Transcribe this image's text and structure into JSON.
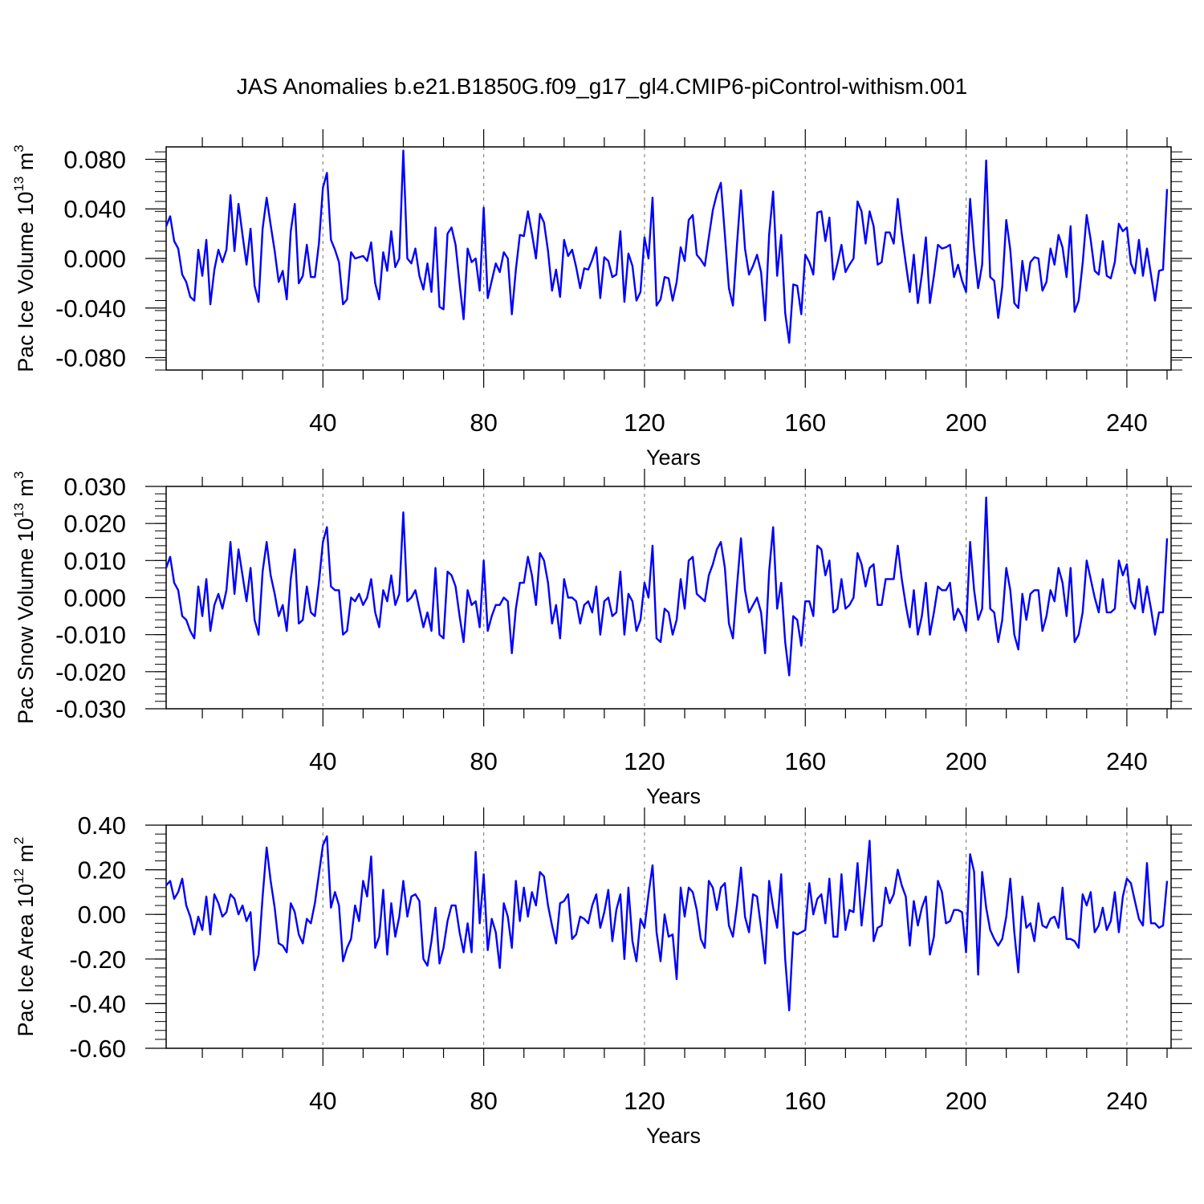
{
  "title": "JAS Anomalies b.e21.B1850G.f09_g17_gl4.CMIP6-piControl-withism.001",
  "chart_data": [
    {
      "type": "line",
      "title": "JAS Anomalies b.e21.B1850G.f09_g17_gl4.CMIP6-piControl-withism.001",
      "xlabel": "Years",
      "ylabel": {
        "prefix": "Pac Ice Volume 10",
        "exponent": "13",
        "unit": " m",
        "unit_exponent": "3"
      },
      "xlim": [
        1,
        251
      ],
      "ylim": [
        -0.09,
        0.09
      ],
      "xticks": [
        40,
        80,
        120,
        160,
        200,
        240
      ],
      "xtick_labels": [
        "40",
        "80",
        "120",
        "160",
        "200",
        "240"
      ],
      "yticks": [
        -0.08,
        -0.04,
        0.0,
        0.04,
        0.08
      ],
      "ytick_labels": [
        "-0.080",
        "-0.040",
        "0.000",
        "0.040",
        "0.080"
      ],
      "grid": "dashed vertical at x ticks",
      "color": "#0000ff",
      "series": [
        {
          "name": "Pac Ice Volume",
          "x_start": 1,
          "x_step": 1,
          "values": [
            0.026,
            0.034,
            0.014,
            0.008,
            -0.013,
            -0.019,
            -0.031,
            -0.034,
            0.007,
            -0.014,
            0.015,
            -0.037,
            -0.009,
            0.007,
            -0.003,
            0.007,
            0.051,
            0.006,
            0.044,
            0.019,
            -0.005,
            0.024,
            -0.022,
            -0.035,
            0.024,
            0.049,
            0.027,
            0.006,
            -0.019,
            -0.01,
            -0.033,
            0.022,
            0.044,
            -0.02,
            -0.014,
            0.011,
            -0.015,
            -0.015,
            0.012,
            0.057,
            0.069,
            0.015,
            0.007,
            -0.003,
            -0.037,
            -0.033,
            0.005,
            0.0,
            0.001,
            0.002,
            -0.002,
            0.013,
            -0.02,
            -0.033,
            0.005,
            -0.01,
            0.022,
            -0.007,
            0.0,
            0.087,
            0.0,
            -0.004,
            0.008,
            -0.014,
            -0.025,
            -0.004,
            -0.027,
            0.025,
            -0.039,
            -0.041,
            0.02,
            0.025,
            0.011,
            -0.02,
            -0.049,
            0.008,
            -0.003,
            0.0,
            -0.026,
            0.041,
            -0.032,
            -0.018,
            -0.004,
            -0.011,
            0.005,
            0.0,
            -0.045,
            -0.009,
            0.019,
            0.018,
            0.038,
            0.02,
            0.0,
            0.036,
            0.029,
            0.006,
            -0.026,
            -0.009,
            -0.031,
            0.015,
            0.002,
            0.007,
            -0.007,
            -0.024,
            -0.008,
            -0.009,
            -0.001,
            0.009,
            -0.032,
            0.001,
            -0.002,
            -0.015,
            -0.013,
            0.022,
            -0.035,
            0.004,
            -0.006,
            -0.034,
            -0.027,
            0.017,
            0.0,
            0.049,
            -0.038,
            -0.033,
            -0.015,
            -0.016,
            -0.034,
            -0.019,
            0.009,
            -0.002,
            0.031,
            0.035,
            0.003,
            -0.001,
            -0.006,
            0.017,
            0.039,
            0.052,
            0.061,
            0.019,
            -0.024,
            -0.038,
            0.011,
            0.055,
            0.008,
            -0.013,
            -0.006,
            0.003,
            -0.011,
            -0.05,
            0.019,
            0.054,
            -0.014,
            0.019,
            -0.044,
            -0.068,
            -0.021,
            -0.022,
            -0.045,
            0.003,
            -0.003,
            -0.013,
            0.037,
            0.038,
            0.014,
            0.033,
            -0.017,
            -0.004,
            0.011,
            -0.011,
            -0.005,
            0.0,
            0.046,
            0.038,
            0.012,
            0.038,
            0.026,
            -0.005,
            -0.003,
            0.021,
            0.021,
            0.012,
            0.048,
            0.02,
            -0.004,
            -0.027,
            0.003,
            -0.036,
            -0.013,
            0.017,
            -0.036,
            -0.014,
            0.011,
            0.008,
            0.009,
            0.011,
            -0.015,
            -0.005,
            -0.018,
            -0.027,
            0.048,
            0.007,
            -0.024,
            -0.005,
            0.079,
            -0.015,
            -0.018,
            -0.048,
            -0.023,
            0.031,
            0.007,
            -0.036,
            -0.04,
            -0.002,
            -0.026,
            -0.003,
            0.001,
            0.0,
            -0.026,
            -0.019,
            0.008,
            -0.005,
            0.019,
            0.009,
            -0.015,
            0.026,
            -0.043,
            -0.034,
            -0.004,
            0.035,
            0.015,
            -0.01,
            -0.013,
            0.014,
            -0.014,
            -0.016,
            -0.003,
            0.028,
            0.022,
            0.025,
            -0.004,
            -0.012,
            0.015,
            -0.014,
            0.008,
            -0.013,
            -0.034,
            -0.01,
            -0.009,
            0.056
          ]
        }
      ]
    },
    {
      "type": "line",
      "xlabel": "Years",
      "ylabel": {
        "prefix": "Pac Snow Volume 10",
        "exponent": "13",
        "unit": " m",
        "unit_exponent": "3"
      },
      "xlim": [
        1,
        251
      ],
      "ylim": [
        -0.03,
        0.03
      ],
      "xticks": [
        40,
        80,
        120,
        160,
        200,
        240
      ],
      "xtick_labels": [
        "40",
        "80",
        "120",
        "160",
        "200",
        "240"
      ],
      "yticks": [
        -0.03,
        -0.02,
        -0.01,
        0.0,
        0.01,
        0.02,
        0.03
      ],
      "ytick_labels": [
        "-0.030",
        "-0.020",
        "-0.010",
        "0.000",
        "0.010",
        "0.020",
        "0.030"
      ],
      "grid": "dashed vertical at x ticks",
      "color": "#0000ff",
      "series": [
        {
          "name": "Pac Snow Volume",
          "x_start": 1,
          "x_step": 1,
          "values": [
            0.008,
            0.011,
            0.004,
            0.002,
            -0.005,
            -0.006,
            -0.009,
            -0.011,
            0.003,
            -0.005,
            0.005,
            -0.009,
            -0.002,
            0.001,
            -0.003,
            0.002,
            0.015,
            0.001,
            0.013,
            0.006,
            -0.001,
            0.008,
            -0.006,
            -0.01,
            0.007,
            0.015,
            0.006,
            0.001,
            -0.005,
            -0.002,
            -0.009,
            0.005,
            0.013,
            -0.007,
            -0.006,
            0.003,
            -0.004,
            -0.005,
            0.004,
            0.015,
            0.019,
            0.003,
            0.002,
            0.002,
            -0.01,
            -0.009,
            0.0,
            -0.001,
            0.001,
            -0.002,
            0.0,
            0.005,
            -0.004,
            -0.008,
            0.002,
            -0.001,
            0.006,
            -0.002,
            0.001,
            0.023,
            -0.001,
            0.0,
            0.002,
            -0.003,
            -0.008,
            -0.004,
            -0.009,
            0.008,
            -0.01,
            -0.011,
            0.007,
            0.006,
            0.003,
            -0.005,
            -0.012,
            0.002,
            -0.002,
            -0.001,
            -0.008,
            0.01,
            -0.009,
            -0.005,
            -0.002,
            -0.002,
            0.0,
            -0.001,
            -0.015,
            -0.003,
            0.004,
            0.004,
            0.011,
            0.006,
            -0.002,
            0.012,
            0.01,
            0.004,
            -0.007,
            -0.002,
            -0.011,
            0.005,
            0.0,
            0.0,
            -0.001,
            -0.007,
            -0.002,
            -0.001,
            -0.004,
            0.003,
            -0.01,
            -0.001,
            0.0,
            -0.005,
            -0.004,
            0.007,
            -0.01,
            0.001,
            -0.001,
            -0.009,
            -0.006,
            0.004,
            0.0,
            0.014,
            -0.011,
            -0.012,
            -0.003,
            -0.004,
            -0.01,
            -0.006,
            0.005,
            -0.003,
            0.01,
            0.011,
            0.001,
            0.0,
            -0.001,
            0.006,
            0.009,
            0.013,
            0.015,
            0.008,
            -0.007,
            -0.011,
            0.003,
            0.016,
            0.002,
            -0.004,
            -0.002,
            0.0,
            -0.004,
            -0.015,
            0.007,
            0.019,
            -0.003,
            0.004,
            -0.012,
            -0.021,
            -0.005,
            -0.006,
            -0.013,
            -0.001,
            -0.001,
            -0.005,
            0.014,
            0.013,
            0.006,
            0.01,
            -0.004,
            -0.003,
            0.005,
            -0.003,
            -0.002,
            0.0,
            0.012,
            0.009,
            0.003,
            0.008,
            0.009,
            -0.002,
            -0.002,
            0.005,
            0.005,
            0.005,
            0.014,
            0.005,
            -0.002,
            -0.008,
            0.002,
            -0.01,
            -0.005,
            0.004,
            -0.01,
            -0.004,
            0.003,
            0.002,
            0.002,
            0.004,
            -0.006,
            -0.003,
            -0.005,
            -0.009,
            0.015,
            0.002,
            -0.006,
            -0.003,
            0.027,
            -0.003,
            -0.004,
            -0.012,
            -0.006,
            0.008,
            0.002,
            -0.01,
            -0.014,
            0.001,
            -0.006,
            0.001,
            0.002,
            0.002,
            -0.009,
            -0.005,
            0.002,
            -0.001,
            0.008,
            0.004,
            -0.005,
            0.008,
            -0.012,
            -0.01,
            -0.004,
            0.01,
            0.005,
            0.0,
            -0.004,
            0.005,
            -0.004,
            -0.004,
            -0.003,
            0.01,
            0.006,
            0.009,
            -0.001,
            -0.003,
            0.005,
            -0.004,
            0.003,
            -0.003,
            -0.01,
            -0.004,
            -0.004,
            0.016
          ]
        }
      ]
    },
    {
      "type": "line",
      "xlabel": "Years",
      "ylabel": {
        "prefix": "Pac Ice Area 10",
        "exponent": "12",
        "unit": " m",
        "unit_exponent": "2"
      },
      "xlim": [
        1,
        251
      ],
      "ylim": [
        -0.6,
        0.4
      ],
      "xticks": [
        40,
        80,
        120,
        160,
        200,
        240
      ],
      "xtick_labels": [
        "40",
        "80",
        "120",
        "160",
        "200",
        "240"
      ],
      "yticks": [
        -0.6,
        -0.4,
        -0.2,
        0.0,
        0.2,
        0.4
      ],
      "ytick_labels": [
        "-0.60",
        "-0.40",
        "-0.20",
        "0.00",
        "0.20",
        "0.40"
      ],
      "grid": "dashed vertical at x ticks",
      "color": "#0000ff",
      "series": [
        {
          "name": "Pac Ice Area",
          "x_start": 1,
          "x_step": 1,
          "values": [
            0.13,
            0.15,
            0.07,
            0.1,
            0.16,
            0.04,
            -0.01,
            -0.09,
            -0.01,
            -0.07,
            0.08,
            -0.09,
            0.09,
            0.05,
            -0.01,
            0.01,
            0.09,
            0.07,
            0.0,
            0.04,
            -0.03,
            0.01,
            -0.25,
            -0.18,
            0.08,
            0.3,
            0.15,
            0.03,
            -0.13,
            -0.14,
            -0.17,
            0.05,
            0.01,
            -0.09,
            -0.13,
            -0.02,
            -0.04,
            0.05,
            0.18,
            0.31,
            0.35,
            0.03,
            0.1,
            0.04,
            -0.21,
            -0.15,
            -0.11,
            0.04,
            -0.03,
            0.15,
            0.08,
            0.26,
            -0.15,
            -0.1,
            0.11,
            -0.18,
            0.05,
            -0.1,
            -0.01,
            0.15,
            -0.01,
            0.08,
            0.09,
            0.06,
            -0.2,
            -0.23,
            -0.12,
            0.03,
            -0.22,
            -0.15,
            -0.03,
            0.04,
            0.04,
            -0.08,
            -0.17,
            -0.04,
            -0.17,
            0.28,
            -0.04,
            0.18,
            -0.16,
            -0.02,
            -0.08,
            -0.24,
            0.05,
            -0.01,
            -0.15,
            0.15,
            -0.03,
            0.12,
            -0.01,
            0.1,
            0.04,
            0.19,
            0.17,
            0.04,
            -0.05,
            -0.13,
            0.05,
            0.06,
            0.09,
            -0.11,
            -0.09,
            -0.01,
            -0.02,
            -0.04,
            0.04,
            0.09,
            -0.06,
            0.01,
            0.11,
            -0.12,
            0.02,
            0.09,
            -0.2,
            0.12,
            -0.12,
            -0.21,
            -0.02,
            -0.06,
            0.09,
            0.22,
            -0.08,
            -0.21,
            0.0,
            -0.1,
            -0.09,
            -0.29,
            0.12,
            -0.01,
            0.12,
            0.1,
            0.02,
            -0.11,
            -0.15,
            0.15,
            0.12,
            0.02,
            0.12,
            0.14,
            -0.05,
            -0.1,
            0.04,
            0.21,
            -0.01,
            -0.08,
            0.09,
            0.08,
            -0.06,
            -0.22,
            0.15,
            0.03,
            -0.06,
            0.18,
            -0.2,
            -0.43,
            -0.08,
            -0.09,
            -0.08,
            -0.07,
            0.14,
            0.0,
            0.07,
            0.09,
            -0.04,
            0.16,
            -0.1,
            -0.1,
            0.18,
            -0.07,
            0.02,
            0.01,
            0.23,
            -0.05,
            0.12,
            0.33,
            -0.12,
            -0.06,
            -0.05,
            0.12,
            0.05,
            0.09,
            0.2,
            0.13,
            0.08,
            -0.14,
            0.06,
            -0.05,
            0.03,
            0.08,
            -0.18,
            -0.1,
            0.15,
            0.1,
            -0.04,
            -0.03,
            0.02,
            0.02,
            0.01,
            -0.17,
            0.27,
            0.19,
            -0.27,
            0.19,
            0.03,
            -0.07,
            -0.11,
            -0.14,
            -0.11,
            -0.01,
            0.16,
            -0.08,
            -0.26,
            0.08,
            -0.06,
            -0.04,
            -0.12,
            0.05,
            -0.05,
            -0.06,
            -0.02,
            -0.01,
            -0.06,
            0.12,
            -0.11,
            -0.11,
            -0.12,
            -0.15,
            0.09,
            0.04,
            0.1,
            -0.08,
            -0.05,
            0.03,
            -0.07,
            -0.03,
            0.1,
            -0.08,
            0.08,
            0.16,
            0.14,
            0.06,
            -0.02,
            -0.05,
            0.23,
            -0.04,
            -0.04,
            -0.06,
            -0.05,
            0.15
          ]
        }
      ]
    }
  ]
}
